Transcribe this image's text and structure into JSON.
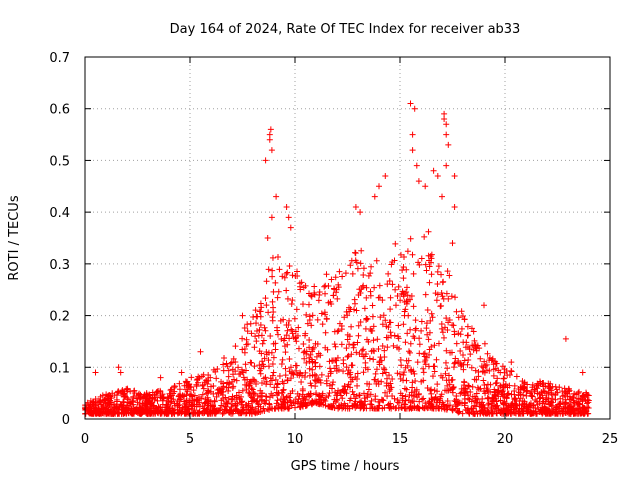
{
  "chart_data": {
    "type": "scatter",
    "title": "Day 164 of 2024, Rate Of TEC Index for receiver ab33",
    "xlabel": "GPS time / hours",
    "ylabel": "ROTI / TECUs",
    "xlim": [
      0,
      25
    ],
    "ylim": [
      0,
      0.7
    ],
    "xticks": [
      0,
      5,
      10,
      15,
      20,
      25
    ],
    "yticks": [
      0,
      0.1,
      0.2,
      0.3,
      0.4,
      0.5,
      0.6,
      0.7
    ],
    "xtick_labels": [
      "0",
      "5",
      "10",
      "15",
      "20",
      "25"
    ],
    "ytick_labels": [
      "0",
      "0.1",
      "0.2",
      "0.3",
      "0.4",
      "0.5",
      "0.6",
      "0.7"
    ],
    "grid": true,
    "marker": "plus",
    "point_color": "#ff0000",
    "envelope": {
      "description": "dense cloud of ROTI samples; upper envelope per hour",
      "x": [
        0,
        1,
        2,
        3,
        4,
        5,
        6,
        7,
        8,
        9,
        10,
        11,
        12,
        13,
        14,
        15,
        16,
        17,
        18,
        19,
        20,
        21,
        22,
        23,
        24
      ],
      "upper": [
        0.03,
        0.05,
        0.06,
        0.05,
        0.06,
        0.08,
        0.09,
        0.14,
        0.2,
        0.32,
        0.3,
        0.26,
        0.28,
        0.33,
        0.35,
        0.34,
        0.38,
        0.33,
        0.2,
        0.15,
        0.1,
        0.08,
        0.07,
        0.06,
        0.05
      ],
      "lower": [
        0.01,
        0.01,
        0.01,
        0.01,
        0.01,
        0.01,
        0.01,
        0.01,
        0.01,
        0.02,
        0.02,
        0.03,
        0.02,
        0.02,
        0.02,
        0.02,
        0.02,
        0.02,
        0.01,
        0.01,
        0.01,
        0.01,
        0.01,
        0.01,
        0.01
      ]
    },
    "outliers": [
      {
        "x": 0.5,
        "y": 0.09
      },
      {
        "x": 1.6,
        "y": 0.1
      },
      {
        "x": 1.7,
        "y": 0.09
      },
      {
        "x": 3.6,
        "y": 0.08
      },
      {
        "x": 4.6,
        "y": 0.09
      },
      {
        "x": 5.5,
        "y": 0.13
      },
      {
        "x": 7.5,
        "y": 0.2
      },
      {
        "x": 8.1,
        "y": 0.16
      },
      {
        "x": 8.6,
        "y": 0.5
      },
      {
        "x": 8.8,
        "y": 0.54
      },
      {
        "x": 8.8,
        "y": 0.55
      },
      {
        "x": 8.85,
        "y": 0.56
      },
      {
        "x": 8.9,
        "y": 0.52
      },
      {
        "x": 9.1,
        "y": 0.43
      },
      {
        "x": 8.9,
        "y": 0.39
      },
      {
        "x": 8.7,
        "y": 0.35
      },
      {
        "x": 9.6,
        "y": 0.41
      },
      {
        "x": 9.7,
        "y": 0.39
      },
      {
        "x": 9.8,
        "y": 0.37
      },
      {
        "x": 11.5,
        "y": 0.28
      },
      {
        "x": 12.9,
        "y": 0.41
      },
      {
        "x": 13.1,
        "y": 0.4
      },
      {
        "x": 13.8,
        "y": 0.43
      },
      {
        "x": 14.0,
        "y": 0.45
      },
      {
        "x": 14.3,
        "y": 0.47
      },
      {
        "x": 15.5,
        "y": 0.61
      },
      {
        "x": 15.7,
        "y": 0.6
      },
      {
        "x": 15.6,
        "y": 0.55
      },
      {
        "x": 15.6,
        "y": 0.52
      },
      {
        "x": 15.8,
        "y": 0.49
      },
      {
        "x": 15.9,
        "y": 0.46
      },
      {
        "x": 16.2,
        "y": 0.45
      },
      {
        "x": 16.6,
        "y": 0.48
      },
      {
        "x": 16.8,
        "y": 0.47
      },
      {
        "x": 17.1,
        "y": 0.59
      },
      {
        "x": 17.1,
        "y": 0.58
      },
      {
        "x": 17.2,
        "y": 0.57
      },
      {
        "x": 17.2,
        "y": 0.55
      },
      {
        "x": 17.3,
        "y": 0.53
      },
      {
        "x": 17.2,
        "y": 0.49
      },
      {
        "x": 17.0,
        "y": 0.43
      },
      {
        "x": 17.6,
        "y": 0.47
      },
      {
        "x": 17.6,
        "y": 0.41
      },
      {
        "x": 17.5,
        "y": 0.34
      },
      {
        "x": 19.0,
        "y": 0.22
      },
      {
        "x": 20.3,
        "y": 0.11
      },
      {
        "x": 22.9,
        "y": 0.155
      },
      {
        "x": 23.7,
        "y": 0.09
      }
    ]
  }
}
